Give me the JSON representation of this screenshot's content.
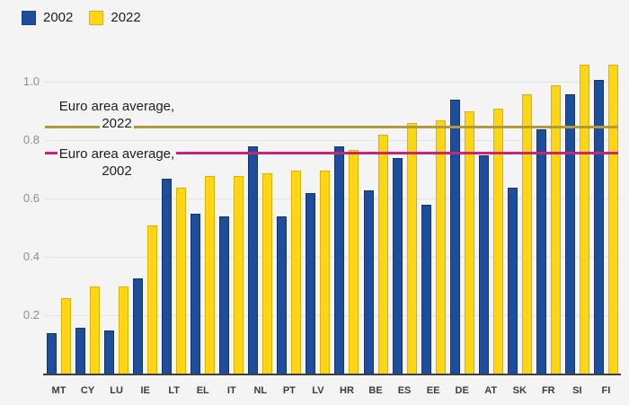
{
  "legend": {
    "items": [
      {
        "label": "2002",
        "color": "#1d4e9e"
      },
      {
        "label": "2022",
        "color": "#ffd616"
      }
    ]
  },
  "annotations": {
    "avg2022_line1": "Euro area average,",
    "avg2022_line2": "2022",
    "avg2002_line1": "Euro area average,",
    "avg2002_line2": "2002"
  },
  "colors": {
    "bar_2002": "#1d4e9e",
    "bar_2022": "#ffd616",
    "avg_line_2022": "#b2993a",
    "avg_line_2002": "#c92478",
    "background": "#f4f4f4",
    "gridline": "#e2e2e2",
    "axis": "#3f3f3f"
  },
  "chart_data": {
    "type": "bar",
    "title": "",
    "xlabel": "",
    "ylabel": "",
    "categories": [
      "MT",
      "CY",
      "LU",
      "IE",
      "LT",
      "EL",
      "IT",
      "NL",
      "PT",
      "LV",
      "HR",
      "BE",
      "ES",
      "EE",
      "DE",
      "AT",
      "SK",
      "FR",
      "SI",
      "FI"
    ],
    "series": [
      {
        "name": "2002",
        "color": "#1d4e9e",
        "values": [
          0.14,
          0.16,
          0.15,
          0.33,
          0.67,
          0.55,
          0.54,
          0.78,
          0.54,
          0.62,
          0.78,
          0.63,
          0.74,
          0.58,
          0.94,
          0.75,
          0.64,
          0.84,
          0.96,
          1.01
        ]
      },
      {
        "name": "2022",
        "color": "#ffd616",
        "values": [
          0.26,
          0.3,
          0.3,
          0.51,
          0.64,
          0.68,
          0.68,
          0.69,
          0.7,
          0.7,
          0.77,
          0.82,
          0.86,
          0.87,
          0.9,
          0.91,
          0.96,
          0.99,
          1.06,
          1.06
        ]
      }
    ],
    "reference_lines": [
      {
        "label": "Euro area average, 2022",
        "value": 0.85,
        "color": "#b2993a"
      },
      {
        "label": "Euro area average, 2002",
        "value": 0.76,
        "color": "#c92478"
      }
    ],
    "yticks": [
      "0.2",
      "0.4",
      "0.6",
      "0.8",
      "1.0"
    ],
    "ytick_values": [
      0.2,
      0.4,
      0.6,
      0.8,
      1.0
    ],
    "ylim": [
      0,
      1.1
    ],
    "grid": true,
    "legend_position": "top-left"
  }
}
